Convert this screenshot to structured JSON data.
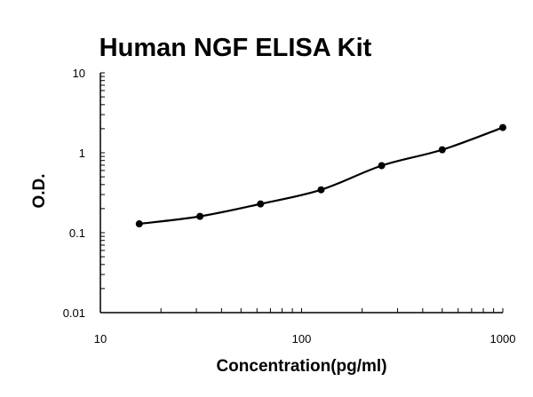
{
  "chart_data": {
    "type": "line",
    "title": "Human NGF ELISA Kit",
    "xlabel": "Concentration(pg/ml)",
    "ylabel": "O.D.",
    "xscale": "log",
    "yscale": "log",
    "xlim": [
      10,
      1000
    ],
    "ylim": [
      0.01,
      10
    ],
    "xticks": [
      "10",
      "100",
      "1000"
    ],
    "yticks": [
      "0.01",
      "0.1",
      "1",
      "10"
    ],
    "grid": false,
    "series": [
      {
        "x": [
          15.6,
          31.25,
          62.5,
          125,
          250,
          500,
          1000
        ],
        "y": [
          0.129,
          0.16,
          0.229,
          0.344,
          0.69,
          1.09,
          2.07
        ],
        "marker": "circle",
        "color": "#000000",
        "fit": "smooth-curve"
      }
    ]
  }
}
